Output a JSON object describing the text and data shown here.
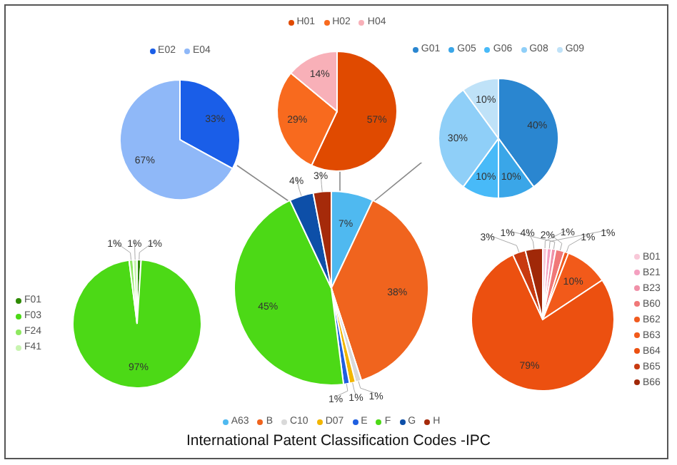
{
  "chart_data": [
    {
      "type": "pie",
      "categories": [
        "E02",
        "E04"
      ],
      "values": [
        33,
        67
      ],
      "value_labels": [
        "33%",
        "67%"
      ],
      "colors": [
        "#1a5ee8",
        "#8fb8f8"
      ],
      "legend": "top"
    },
    {
      "type": "pie",
      "categories": [
        "H01",
        "H02",
        "H04"
      ],
      "values": [
        57,
        29,
        14
      ],
      "value_labels": [
        "57%",
        "29%",
        "14%"
      ],
      "colors": [
        "#e04a00",
        "#f86a1e",
        "#f8b0b8"
      ],
      "legend": "top"
    },
    {
      "type": "pie",
      "categories": [
        "G01",
        "G05",
        "G06",
        "G08",
        "G09"
      ],
      "values": [
        40,
        10,
        10,
        30,
        10
      ],
      "value_labels": [
        "40%",
        "10%",
        "10%",
        "30%",
        "10%"
      ],
      "colors": [
        "#2a86d0",
        "#3aa6e8",
        "#48baf8",
        "#8fcff8",
        "#bfe2f8"
      ],
      "legend": "top"
    },
    {
      "type": "pie",
      "categories": [
        "F01",
        "F03",
        "F24",
        "F41"
      ],
      "values": [
        1,
        97,
        1,
        1
      ],
      "value_labels": [
        "1%",
        "97%",
        "1%",
        "1%"
      ],
      "colors": [
        "#2e8a00",
        "#4cd916",
        "#8ee860",
        "#c8f4b0"
      ],
      "legend": "left"
    },
    {
      "type": "pie",
      "title": "International Patent Classification Codes -IPC",
      "categories": [
        "A63",
        "B",
        "C10",
        "D07",
        "E",
        "F",
        "G",
        "H"
      ],
      "values": [
        7,
        38,
        1,
        1,
        1,
        45,
        4,
        3
      ],
      "value_labels": [
        "7%",
        "38%",
        "1%",
        "1%",
        "1%",
        "45%",
        "4%",
        "3%"
      ],
      "colors": [
        "#4fb9f0",
        "#f0641e",
        "#d9d9d9",
        "#f2b600",
        "#1f5fe0",
        "#4cd916",
        "#0d4fa8",
        "#a52a0a"
      ],
      "legend": "bottom"
    },
    {
      "type": "pie",
      "categories": [
        "B01",
        "B21",
        "B23",
        "B60",
        "B62",
        "B63",
        "B64",
        "B65",
        "B66"
      ],
      "values": [
        1,
        1,
        1,
        2,
        1,
        10,
        79,
        3,
        4
      ],
      "value_labels": [
        "1%",
        "1%",
        "1%",
        "2%",
        "1%",
        "10%",
        "79%",
        "3%",
        "4%"
      ],
      "colors": [
        "#f8c8d8",
        "#f4a0c0",
        "#f090a8",
        "#f07878",
        "#f05a1e",
        "#f25a1a",
        "#ec5010",
        "#c83a10",
        "#a02808"
      ],
      "legend": "right"
    }
  ]
}
